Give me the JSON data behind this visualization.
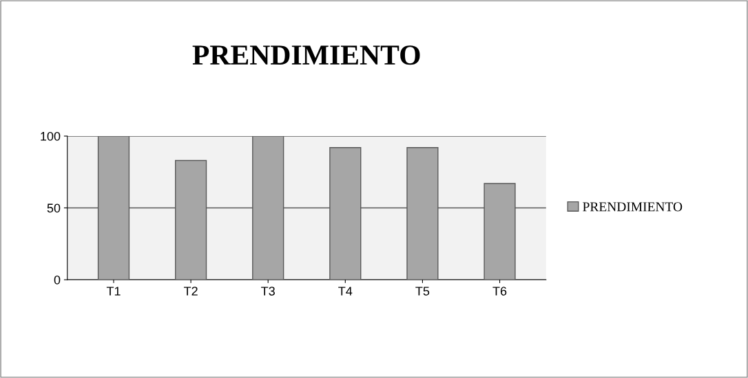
{
  "chart_data": {
    "type": "bar",
    "title": "PRENDIMIENTO",
    "categories": [
      "T1",
      "T2",
      "T3",
      "T4",
      "T5",
      "T6"
    ],
    "series": [
      {
        "name": "PRENDIMIENTO",
        "color": "#a6a6a6",
        "values": [
          100,
          83,
          100,
          92,
          92,
          67
        ]
      }
    ],
    "ylim": [
      0,
      100
    ],
    "yticks": [
      0,
      50,
      100
    ],
    "grid": "y",
    "legend": "right"
  }
}
